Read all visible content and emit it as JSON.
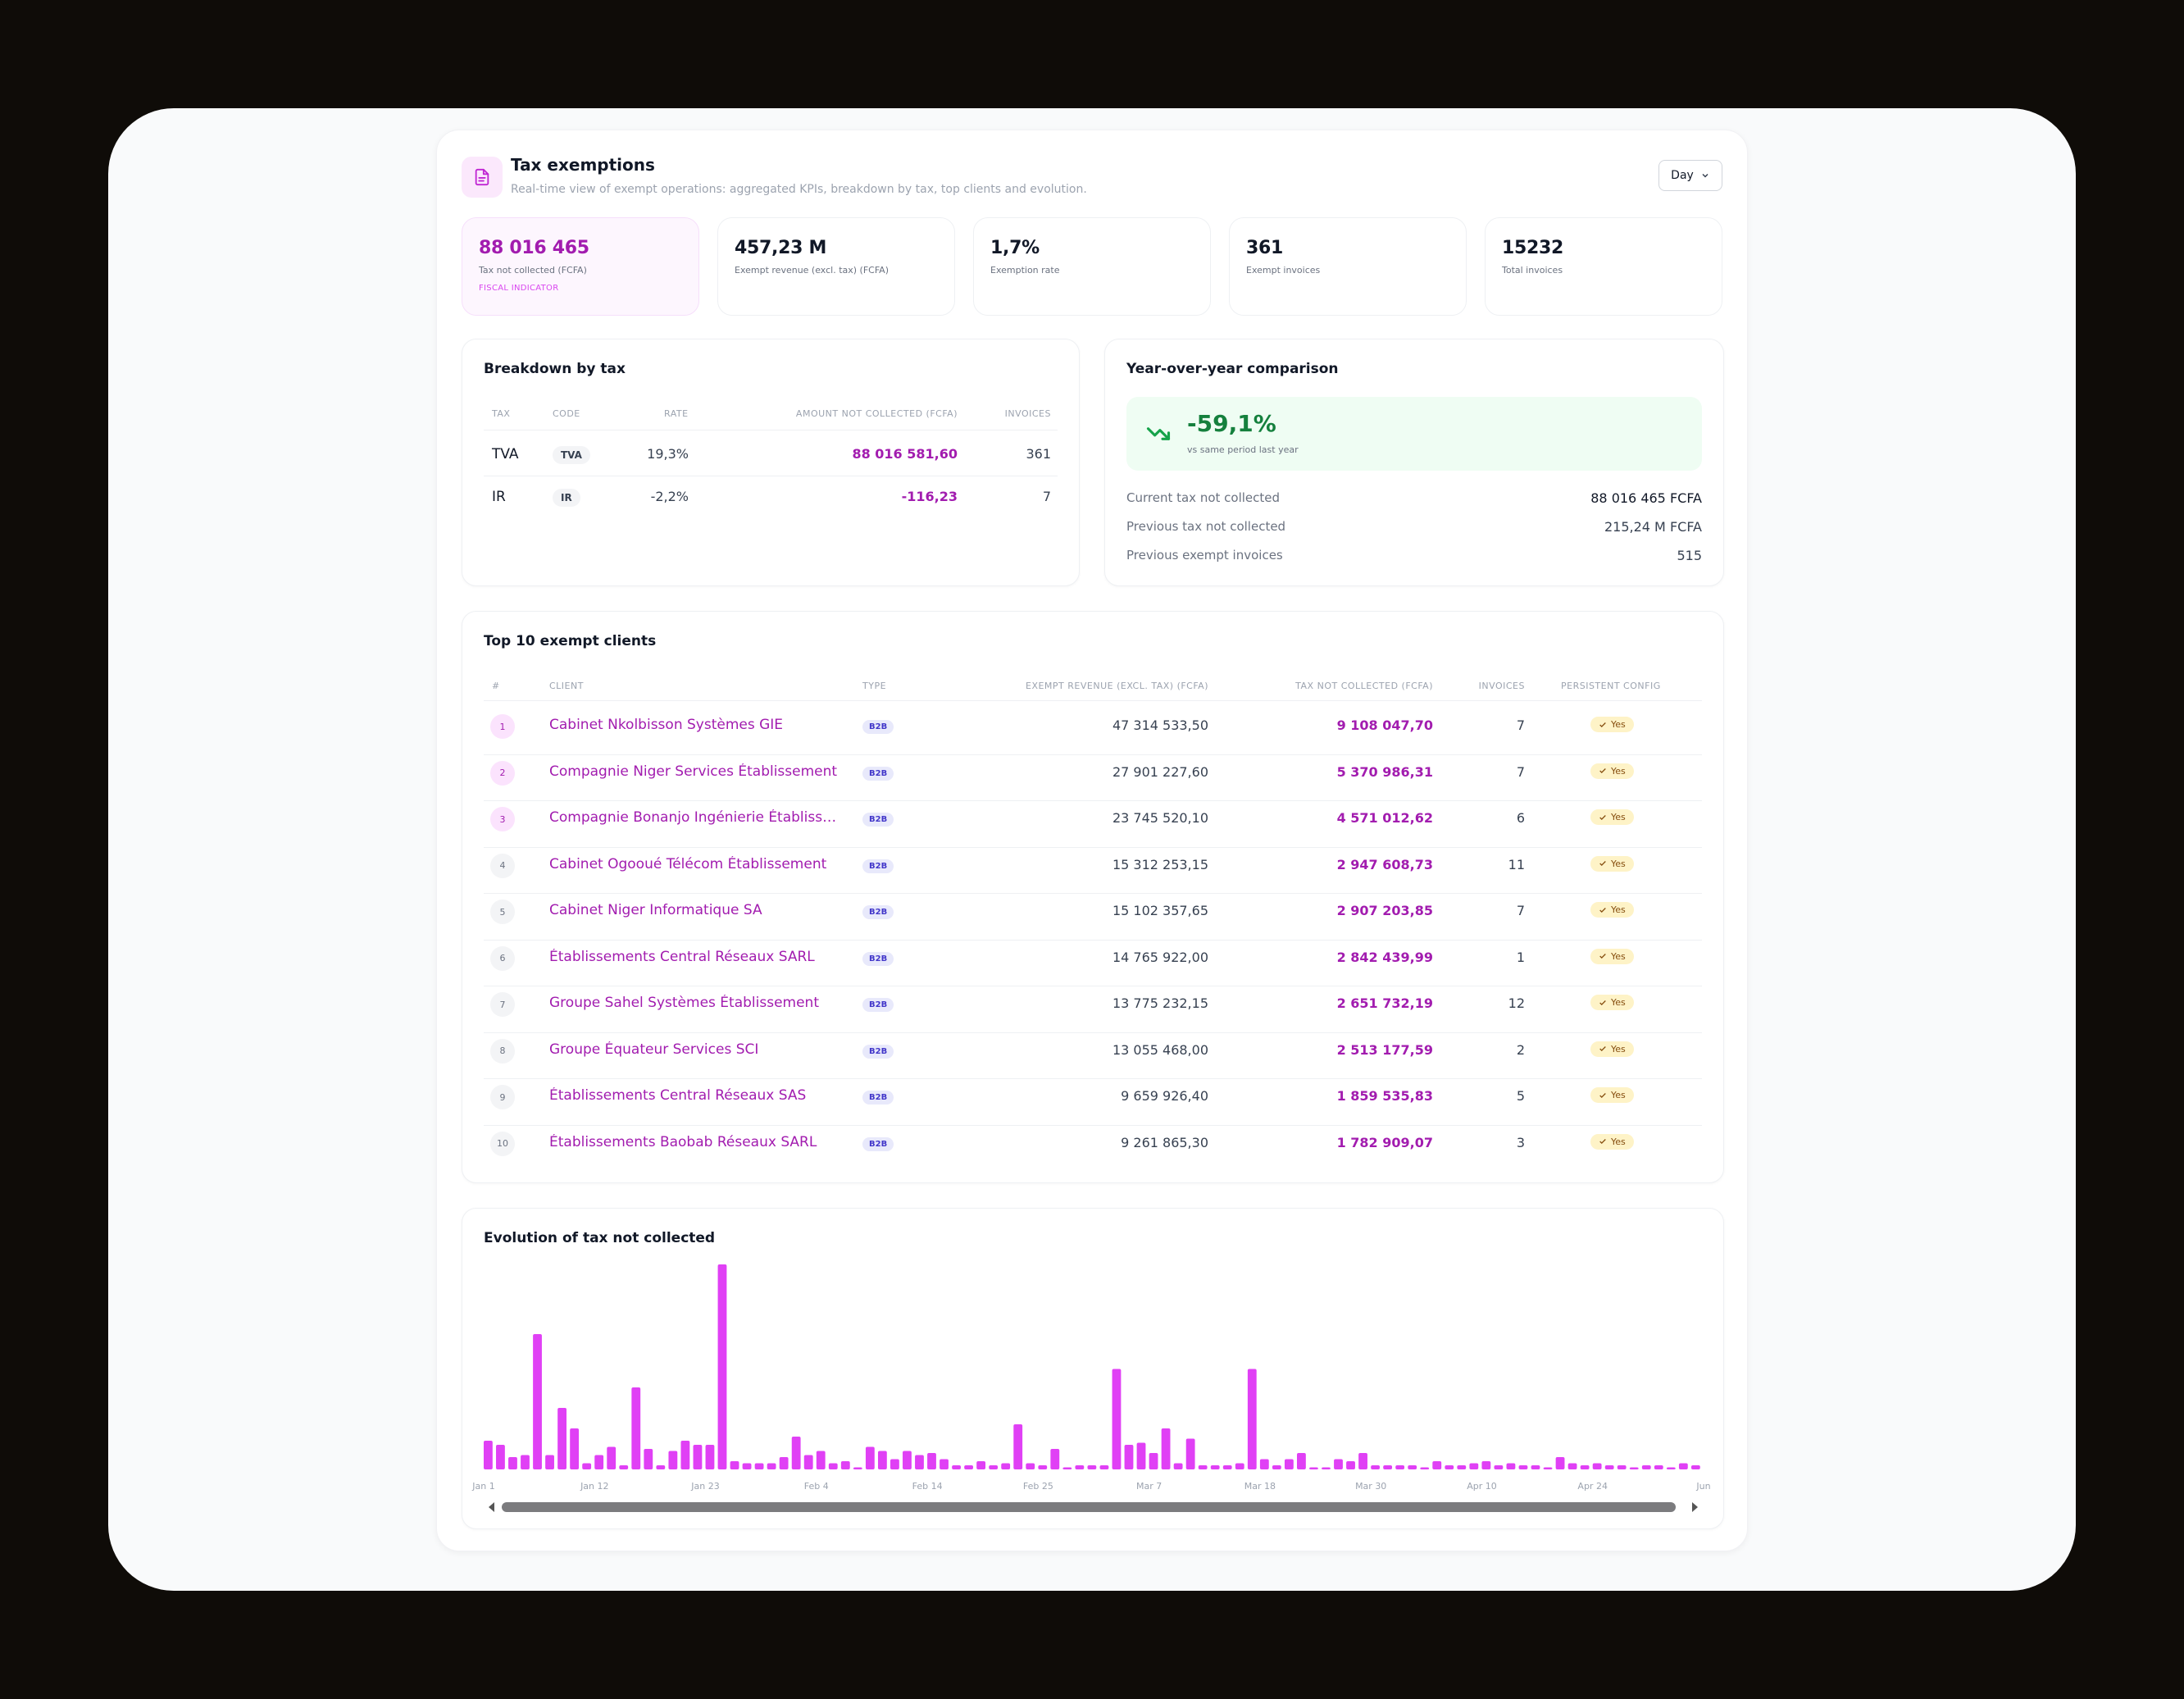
{
  "header": {
    "title": "Tax exemptions",
    "subtitle": "Real-time view of exempt operations: aggregated KPIs, breakdown by tax, top clients and evolution.",
    "icon": "document-icon",
    "period": "Day"
  },
  "kpis": [
    {
      "value": "88 016 465",
      "label": "Tax not collected (FCFA)",
      "tag": "FISCAL INDICATOR"
    },
    {
      "value": "457,23 M",
      "label": "Exempt revenue (excl. tax) (FCFA)"
    },
    {
      "value": "1,7%",
      "label": "Exemption rate"
    },
    {
      "value": "361",
      "label": "Exempt invoices"
    },
    {
      "value": "15232",
      "label": "Total invoices"
    }
  ],
  "breakdown": {
    "title": "Breakdown by tax",
    "columns": [
      "TAX",
      "CODE",
      "RATE",
      "AMOUNT NOT COLLECTED (FCFA)",
      "INVOICES"
    ],
    "rows": [
      {
        "tax": "TVA",
        "code": "TVA",
        "rate": "19,3%",
        "amount": "88 016 581,60",
        "invoices": "361"
      },
      {
        "tax": "IR",
        "code": "IR",
        "rate": "-2,2%",
        "amount": "-116,23",
        "invoices": "7"
      }
    ]
  },
  "yoy": {
    "title": "Year-over-year comparison",
    "value": "-59,1%",
    "sub": "vs same period last year",
    "lines": [
      {
        "label": "Current tax not collected",
        "value": "88 016 465 FCFA"
      },
      {
        "label": "Previous tax not collected",
        "value": "215,24 M FCFA"
      },
      {
        "label": "Previous exempt invoices",
        "value": "515"
      }
    ]
  },
  "clients": {
    "title": "Top 10 exempt clients",
    "columns": [
      "#",
      "CLIENT",
      "TYPE",
      "EXEMPT REVENUE (EXCL. TAX) (FCFA)",
      "TAX NOT COLLECTED (FCFA)",
      "INVOICES",
      "PERSISTENT CONFIG"
    ],
    "rows": [
      {
        "rank": "1",
        "name": "Cabinet Nkolbisson Systèmes GIE",
        "type": "B2B",
        "revenue": "47 314 533,50",
        "tax": "9 108 047,70",
        "invoices": "7",
        "config": "Yes"
      },
      {
        "rank": "2",
        "name": "Compagnie Niger Services Établissement",
        "type": "B2B",
        "revenue": "27 901 227,60",
        "tax": "5 370 986,31",
        "invoices": "7",
        "config": "Yes"
      },
      {
        "rank": "3",
        "name": "Compagnie Bonanjo Ingénierie Établissem…",
        "type": "B2B",
        "revenue": "23 745 520,10",
        "tax": "4 571 012,62",
        "invoices": "6",
        "config": "Yes"
      },
      {
        "rank": "4",
        "name": "Cabinet Ogooué Télécom Établissement",
        "type": "B2B",
        "revenue": "15 312 253,15",
        "tax": "2 947 608,73",
        "invoices": "11",
        "config": "Yes"
      },
      {
        "rank": "5",
        "name": "Cabinet Niger Informatique SA",
        "type": "B2B",
        "revenue": "15 102 357,65",
        "tax": "2 907 203,85",
        "invoices": "7",
        "config": "Yes"
      },
      {
        "rank": "6",
        "name": "Établissements Central Réseaux SARL",
        "type": "B2B",
        "revenue": "14 765 922,00",
        "tax": "2 842 439,99",
        "invoices": "1",
        "config": "Yes"
      },
      {
        "rank": "7",
        "name": "Groupe Sahel Systèmes Établissement",
        "type": "B2B",
        "revenue": "13 775 232,15",
        "tax": "2 651 732,19",
        "invoices": "12",
        "config": "Yes"
      },
      {
        "rank": "8",
        "name": "Groupe Équateur Services SCI",
        "type": "B2B",
        "revenue": "13 055 468,00",
        "tax": "2 513 177,59",
        "invoices": "2",
        "config": "Yes"
      },
      {
        "rank": "9",
        "name": "Établissements Central Réseaux SAS",
        "type": "B2B",
        "revenue": "9 659 926,40",
        "tax": "1 859 535,83",
        "invoices": "5",
        "config": "Yes"
      },
      {
        "rank": "10",
        "name": "Établissements Baobab Réseaux SARL",
        "type": "B2B",
        "revenue": "9 261 865,30",
        "tax": "1 782 909,07",
        "invoices": "3",
        "config": "Yes"
      }
    ]
  },
  "evolution": {
    "title": "Evolution of tax not collected",
    "x_ticks": [
      "Jan 1",
      "Jan 12",
      "Jan 23",
      "Feb 4",
      "Feb 14",
      "Feb 25",
      "Mar 7",
      "Mar 18",
      "Mar 30",
      "Apr 10",
      "Apr 24",
      "Jun"
    ],
    "bar_color": "#e040f5"
  },
  "chart_data": {
    "type": "bar",
    "title": "Evolution of tax not collected",
    "x_ticks": [
      "Jan 1",
      "Jan 12",
      "Jan 23",
      "Feb 4",
      "Feb 14",
      "Feb 25",
      "Mar 7",
      "Mar 18",
      "Mar 30",
      "Apr 10",
      "Apr 24",
      "Jun"
    ],
    "values": [
      14,
      12,
      6,
      7,
      66,
      7,
      30,
      20,
      3,
      7,
      11,
      2,
      40,
      10,
      2,
      9,
      14,
      12,
      12,
      100,
      4,
      3,
      3,
      3,
      6,
      16,
      7,
      9,
      3,
      4,
      1,
      11,
      9,
      5,
      9,
      7,
      8,
      5,
      2,
      2,
      4,
      2,
      3,
      22,
      3,
      2,
      10,
      1,
      2,
      2,
      2,
      49,
      12,
      13,
      8,
      20,
      3,
      15,
      2,
      2,
      2,
      3,
      49,
      5,
      2,
      5,
      8,
      1,
      1,
      5,
      4,
      8,
      2,
      2,
      2,
      2,
      1,
      4,
      2,
      2,
      3,
      4,
      2,
      3,
      2,
      2,
      1,
      6,
      3,
      2,
      3,
      2,
      2,
      1,
      2,
      2,
      1,
      3,
      2
    ],
    "grid": false,
    "legend": "none"
  }
}
